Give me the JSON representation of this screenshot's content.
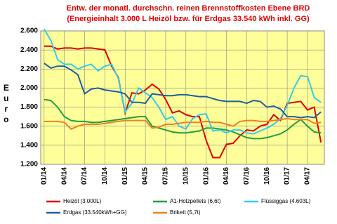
{
  "chart_data": {
    "type": "line",
    "title": "Entw. der monatl. durchschn. reinen Brennstoffkosten Ebene BRD",
    "subtitle": "(Energieinhalt 3.000 L Heizöl bzw. für Erdgas 33.540 kWh inkl. GG)",
    "y_label": "Euro",
    "categories": [
      "01/14",
      null,
      null,
      "04/14",
      null,
      null,
      "07/14",
      null,
      null,
      "10/14",
      null,
      null,
      "01/15",
      null,
      null,
      "04/15",
      null,
      null,
      "07/15",
      null,
      null,
      "10/15",
      null,
      null,
      "01/16",
      null,
      null,
      "04/16",
      null,
      null,
      "07/16",
      null,
      null,
      "10/16",
      null,
      null,
      "01/17",
      null,
      null,
      "04/17",
      null,
      null
    ],
    "ylim": [
      1200,
      2600
    ],
    "yticks": [
      {
        "value": 1200,
        "label": "1.200"
      },
      {
        "value": 1400,
        "label": "1.400"
      },
      {
        "value": 1600,
        "label": "1.600"
      },
      {
        "value": 1800,
        "label": "1.800"
      },
      {
        "value": 2000,
        "label": "2.000"
      },
      {
        "value": 2200,
        "label": "2.200"
      },
      {
        "value": 2400,
        "label": "2.400"
      },
      {
        "value": 2600,
        "label": "2.600"
      }
    ],
    "grid": true,
    "plot_background": "#ffff99",
    "series": [
      {
        "name": "Heizöl (3.000L)",
        "color": "#e00000",
        "values": [
          2440,
          2440,
          2410,
          2420,
          2420,
          2410,
          2420,
          2420,
          2410,
          2400,
          2230,
          2110,
          1740,
          1950,
          1940,
          1980,
          2040,
          1990,
          1880,
          1740,
          1760,
          1720,
          1700,
          1700,
          1450,
          1270,
          1270,
          1410,
          1420,
          1500,
          1560,
          1550,
          1600,
          1620,
          1720,
          1660,
          1840,
          1850,
          1860,
          1770,
          1800,
          1430
        ]
      },
      {
        "name": "A1-Holzpellets (6,6t)",
        "color": "#20a040",
        "values": [
          1880,
          1870,
          1800,
          1700,
          1660,
          1650,
          1650,
          1640,
          1640,
          1650,
          1660,
          1670,
          1680,
          1690,
          1700,
          1700,
          1600,
          1580,
          1560,
          1540,
          1530,
          1530,
          1540,
          1550,
          1580,
          1580,
          1570,
          1560,
          1540,
          1510,
          1480,
          1470,
          1470,
          1480,
          1500,
          1520,
          1560,
          1620,
          1670,
          1600,
          1540,
          1530
        ]
      },
      {
        "name": "Flüssiggas (4.603L)",
        "color": "#33ccee",
        "values": [
          2620,
          2500,
          2300,
          2250,
          2250,
          2200,
          2230,
          2250,
          2180,
          2230,
          2250,
          2100,
          1750,
          1840,
          2000,
          1950,
          1900,
          1800,
          1670,
          1700,
          1600,
          1570,
          1680,
          1720,
          1730,
          1550,
          1560,
          1530,
          1560,
          1560,
          1530,
          1520,
          1550,
          1580,
          1620,
          1680,
          1820,
          2000,
          2130,
          2120,
          1900,
          1850
        ]
      },
      {
        "name": "Erdgas (33.540kWh+GG)",
        "color": "#1f5fa0",
        "values": [
          2260,
          2210,
          2230,
          2230,
          2190,
          2140,
          1940,
          1990,
          2000,
          1980,
          1970,
          1960,
          1940,
          1850,
          1850,
          1840,
          1940,
          1930,
          1920,
          1920,
          1930,
          1930,
          1920,
          1910,
          1910,
          1890,
          1870,
          1860,
          1860,
          1860,
          1840,
          1870,
          1860,
          1800,
          1810,
          1780,
          1700,
          1700,
          1690,
          1700,
          1690,
          1750
        ]
      },
      {
        "name": "Brikett (5,7t)",
        "color": "#f08020",
        "values": [
          1650,
          1650,
          1650,
          1640,
          1570,
          1600,
          1620,
          1620,
          1620,
          1630,
          1640,
          1650,
          1660,
          1660,
          1660,
          1660,
          1580,
          1590,
          1620,
          1620,
          1630,
          1640,
          1640,
          1640,
          1650,
          1640,
          1640,
          1620,
          1600,
          1650,
          1660,
          1660,
          1650,
          1650,
          1660,
          1670,
          1680,
          1670,
          1670,
          1670,
          1630,
          1640
        ]
      }
    ]
  }
}
